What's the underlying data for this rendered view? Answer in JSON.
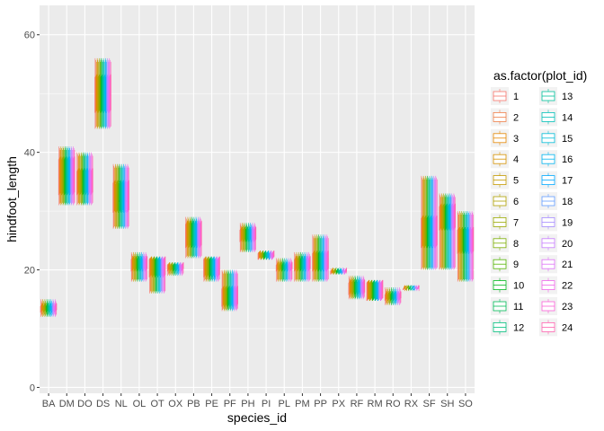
{
  "chart_data": {
    "type": "boxplot",
    "xlabel": "species_id",
    "ylabel": "hindfoot_length",
    "ylim": [
      -1,
      65
    ],
    "y_ticks": [
      0,
      20,
      40,
      60
    ],
    "grid": true,
    "legend_title": "as.factor(plot_id)",
    "legend_position": "right",
    "legend_entries": [
      "1",
      "2",
      "3",
      "4",
      "5",
      "6",
      "7",
      "8",
      "9",
      "10",
      "11",
      "12",
      "13",
      "14",
      "15",
      "16",
      "17",
      "18",
      "19",
      "20",
      "21",
      "22",
      "23",
      "24"
    ],
    "legend_colors": [
      "#F8766D",
      "#EF7F49",
      "#E58700",
      "#D69100",
      "#C49A00",
      "#AFA100",
      "#99A800",
      "#7CAE00",
      "#53B400",
      "#00B81F",
      "#00BC59",
      "#00BF7D",
      "#00C19C",
      "#00C0B8",
      "#00BCD8",
      "#00B4EF",
      "#00A9FF",
      "#619CFF",
      "#A58AFF",
      "#C77CFF",
      "#DF70F8",
      "#F066EA",
      "#FB61D7",
      "#FF64B0"
    ],
    "categories": [
      "BA",
      "DM",
      "DO",
      "DS",
      "NL",
      "OL",
      "OT",
      "OX",
      "PB",
      "PE",
      "PF",
      "PH",
      "PI",
      "PL",
      "PM",
      "PP",
      "PX",
      "RF",
      "RM",
      "RO",
      "RX",
      "SF",
      "SH",
      "SO"
    ],
    "boxes": [
      {
        "species": "BA",
        "q1": 13,
        "q3": 14,
        "median": 13.5,
        "lo": 12,
        "hi": 15
      },
      {
        "species": "DM",
        "q1": 33,
        "q3": 39,
        "median": 36,
        "lo": 31,
        "hi": 41
      },
      {
        "species": "DO",
        "q1": 33,
        "q3": 37,
        "median": 35,
        "lo": 31,
        "hi": 40
      },
      {
        "species": "DS",
        "q1": 47,
        "q3": 53,
        "median": 50,
        "lo": 44,
        "hi": 56
      },
      {
        "species": "NL",
        "q1": 30,
        "q3": 35,
        "median": 32,
        "lo": 27,
        "hi": 38
      },
      {
        "species": "OL",
        "q1": 20,
        "q3": 22,
        "median": 21,
        "lo": 18,
        "hi": 23
      },
      {
        "species": "OT",
        "q1": 19,
        "q3": 22,
        "median": 20.5,
        "lo": 16,
        "hi": 22
      },
      {
        "species": "OX",
        "q1": 20,
        "q3": 21,
        "median": 20.5,
        "lo": 19,
        "hi": 21
      },
      {
        "species": "PB",
        "q1": 24,
        "q3": 28,
        "median": 26,
        "lo": 22,
        "hi": 29
      },
      {
        "species": "PE",
        "q1": 19,
        "q3": 22,
        "median": 20,
        "lo": 18,
        "hi": 22
      },
      {
        "species": "PF",
        "q1": 14,
        "q3": 17,
        "median": 15.5,
        "lo": 13,
        "hi": 20
      },
      {
        "species": "PH",
        "q1": 25,
        "q3": 27,
        "median": 26,
        "lo": 23,
        "hi": 28
      },
      {
        "species": "PI",
        "q1": 22,
        "q3": 23,
        "median": 22.5,
        "lo": 22,
        "hi": 23
      },
      {
        "species": "PL",
        "q1": 20,
        "q3": 21,
        "median": 20.5,
        "lo": 18,
        "hi": 22
      },
      {
        "species": "PM",
        "q1": 20,
        "q3": 22,
        "median": 21,
        "lo": 18,
        "hi": 23
      },
      {
        "species": "PP",
        "q1": 20,
        "q3": 23,
        "median": 22,
        "lo": 18,
        "hi": 26
      },
      {
        "species": "PX",
        "q1": 19.5,
        "q3": 20,
        "median": 20,
        "lo": 19.5,
        "hi": 20
      },
      {
        "species": "RF",
        "q1": 16,
        "q3": 18,
        "median": 17,
        "lo": 15,
        "hi": 19
      },
      {
        "species": "RM",
        "q1": 15,
        "q3": 18,
        "median": 16.5,
        "lo": 15,
        "hi": 18
      },
      {
        "species": "RO",
        "q1": 15,
        "q3": 16,
        "median": 15.5,
        "lo": 14,
        "hi": 17
      },
      {
        "species": "RX",
        "q1": 17,
        "q3": 17,
        "median": 17,
        "lo": 17,
        "hi": 17
      },
      {
        "species": "SF",
        "q1": 24,
        "q3": 29,
        "median": 26,
        "lo": 20,
        "hi": 36
      },
      {
        "species": "SH",
        "q1": 27,
        "q3": 31,
        "median": 29,
        "lo": 20,
        "hi": 33
      },
      {
        "species": "SO",
        "q1": 23,
        "q3": 27,
        "median": 25,
        "lo": 18,
        "hi": 30
      }
    ]
  }
}
